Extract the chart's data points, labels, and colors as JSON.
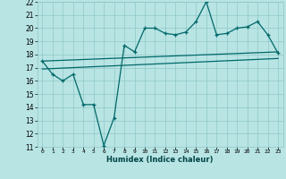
{
  "xlabel": "Humidex (Indice chaleur)",
  "xlim": [
    -0.5,
    23.5
  ],
  "ylim": [
    11,
    22
  ],
  "yticks": [
    11,
    12,
    13,
    14,
    15,
    16,
    17,
    18,
    19,
    20,
    21,
    22
  ],
  "xticks": [
    0,
    1,
    2,
    3,
    4,
    5,
    6,
    7,
    8,
    9,
    10,
    11,
    12,
    13,
    14,
    15,
    16,
    17,
    18,
    19,
    20,
    21,
    22,
    23
  ],
  "humidex_x": [
    0,
    1,
    2,
    3,
    4,
    5,
    6,
    7,
    8,
    9,
    10,
    11,
    12,
    13,
    14,
    15,
    16,
    17,
    18,
    19,
    20,
    21,
    22,
    23
  ],
  "humidex_y": [
    17.5,
    16.5,
    16.0,
    16.5,
    14.2,
    14.2,
    11.1,
    13.2,
    18.7,
    18.2,
    20.0,
    20.0,
    19.6,
    19.5,
    19.7,
    20.5,
    22.0,
    19.5,
    19.6,
    20.0,
    20.1,
    20.5,
    19.5,
    18.1
  ],
  "trend1_x": [
    0,
    23
  ],
  "trend1_y": [
    17.5,
    18.2
  ],
  "trend2_x": [
    0,
    23
  ],
  "trend2_y": [
    16.9,
    17.7
  ],
  "line_color": "#006868",
  "bg_color": "#b8e4e4",
  "grid_color": "#90c8c8"
}
